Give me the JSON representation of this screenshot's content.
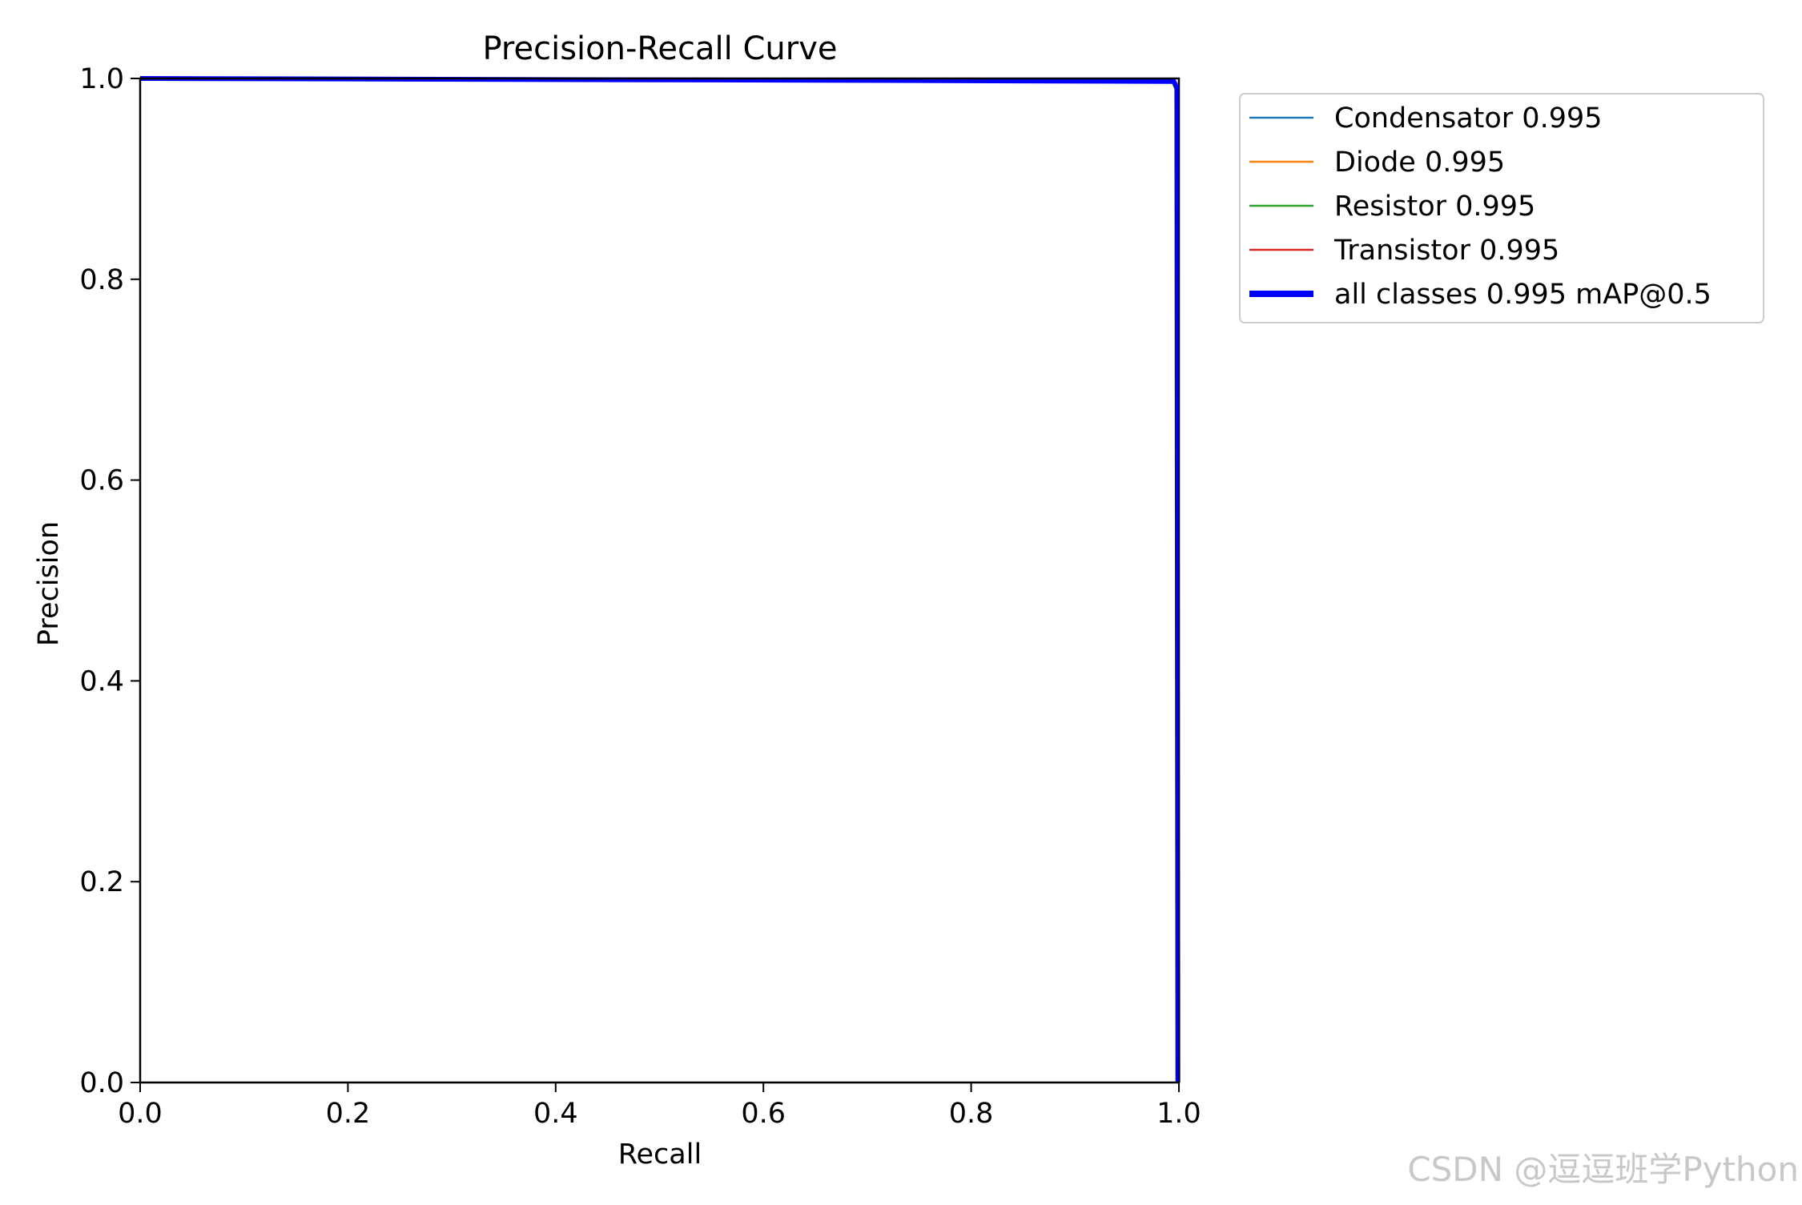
{
  "chart_data": {
    "type": "line",
    "title": "Precision-Recall Curve",
    "xlabel": "Recall",
    "ylabel": "Precision",
    "xlim": [
      0,
      1
    ],
    "ylim": [
      0,
      1
    ],
    "x_ticks": [
      "0.0",
      "0.2",
      "0.4",
      "0.6",
      "0.8",
      "1.0"
    ],
    "y_ticks": [
      "0.0",
      "0.2",
      "0.4",
      "0.6",
      "0.8",
      "1.0"
    ],
    "grid": false,
    "legend_position": "outside-right",
    "series": [
      {
        "name": "Condensator 0.995",
        "color": "#1f77b4",
        "width": "thin",
        "x": [
          0,
          0.72,
          0.995,
          0.998,
          0.999
        ],
        "y": [
          1.0,
          1.0,
          0.999,
          0.995,
          0.0
        ]
      },
      {
        "name": "Diode 0.995",
        "color": "#ff7f0e",
        "width": "thin",
        "x": [
          0,
          0.995,
          0.998,
          0.999
        ],
        "y": [
          1.0,
          1.0,
          0.995,
          0.0
        ]
      },
      {
        "name": "Resistor 0.995",
        "color": "#2ca02c",
        "width": "thin",
        "x": [
          0,
          0.995,
          0.998,
          0.999
        ],
        "y": [
          1.0,
          1.0,
          0.995,
          0.0
        ]
      },
      {
        "name": "Transistor 0.995",
        "color": "#d62728",
        "width": "thin",
        "x": [
          0,
          0.995,
          0.998,
          0.999
        ],
        "y": [
          1.0,
          1.0,
          0.995,
          0.0
        ]
      },
      {
        "name": "all classes 0.995 mAP@0.5",
        "color": "#0000ff",
        "width": "thick",
        "x": [
          0,
          0.72,
          0.995,
          0.998,
          0.999
        ],
        "y": [
          1.0,
          0.998,
          0.997,
          0.99,
          0.0
        ]
      }
    ]
  },
  "watermark": "CSDN @逗逗班学Python"
}
